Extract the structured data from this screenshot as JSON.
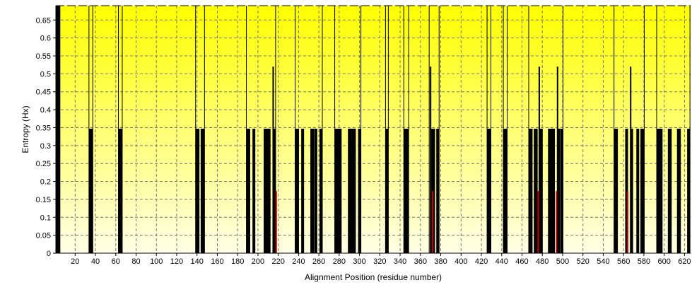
{
  "chart_data": {
    "type": "bar",
    "xlabel": "Alignment Position (residue number)",
    "ylabel": "Entropy (Hx)",
    "xlim": [
      1,
      626
    ],
    "ylim": [
      0,
      0.69
    ],
    "x_ticks": [
      20,
      40,
      60,
      80,
      100,
      120,
      140,
      160,
      180,
      200,
      220,
      240,
      260,
      280,
      300,
      320,
      340,
      360,
      380,
      400,
      420,
      440,
      460,
      480,
      500,
      520,
      540,
      560,
      580,
      600,
      620
    ],
    "y_ticks": [
      0,
      0.05,
      0.1,
      0.15,
      0.2,
      0.25,
      0.3,
      0.35,
      0.4,
      0.45,
      0.5,
      0.55,
      0.6,
      0.65
    ],
    "y_tick_labels": [
      "0",
      "0.05",
      "0.1",
      "0.15",
      "0.2",
      "0.25",
      "0.3",
      "0.35",
      "0.4",
      "0.45",
      "0.5",
      "0.55",
      "0.6",
      "0.65"
    ],
    "grid": true,
    "background_gradient": [
      "#ffff00",
      "#ffffe6"
    ],
    "bar_color": "#000000",
    "highlight_color": "#cc0000",
    "block_start": [
      1,
      4
    ],
    "series": [
      {
        "values": [
          [
            35,
            0.347
          ],
          [
            36,
            0.347
          ],
          [
            64,
            0.347
          ],
          [
            65,
            0.347
          ],
          [
            140,
            0.347
          ],
          [
            141,
            0.347
          ],
          [
            145,
            0.347
          ],
          [
            146,
            0.347
          ],
          [
            190,
            0.347
          ],
          [
            191,
            0.347
          ],
          [
            196,
            0.347
          ],
          [
            207,
            0.347
          ],
          [
            208,
            0.347
          ],
          [
            209,
            0.347
          ],
          [
            210,
            0.347
          ],
          [
            211,
            0.347
          ],
          [
            215,
            0.52
          ],
          [
            216,
            0.347
          ],
          [
            238,
            0.347
          ],
          [
            239,
            0.347
          ],
          [
            244,
            0.347
          ],
          [
            253,
            0.347
          ],
          [
            254,
            0.347
          ],
          [
            257,
            0.347
          ],
          [
            262,
            0.347
          ],
          [
            277,
            0.347
          ],
          [
            278,
            0.347
          ],
          [
            280,
            0.347
          ],
          [
            281,
            0.347
          ],
          [
            290,
            0.347
          ],
          [
            291,
            0.347
          ],
          [
            292,
            0.347
          ],
          [
            293,
            0.347
          ],
          [
            294,
            0.347
          ],
          [
            295,
            0.347
          ],
          [
            300,
            0.347
          ],
          [
            327,
            0.347
          ],
          [
            345,
            0.347
          ],
          [
            346,
            0.347
          ],
          [
            347,
            0.347
          ],
          [
            370,
            0.52
          ],
          [
            372,
            0.347
          ],
          [
            373,
            0.347
          ],
          [
            377,
            0.347
          ],
          [
            427,
            0.347
          ],
          [
            428,
            0.347
          ],
          [
            443,
            0.347
          ],
          [
            444,
            0.347
          ],
          [
            468,
            0.347
          ],
          [
            469,
            0.347
          ],
          [
            473,
            0.347
          ],
          [
            474,
            0.347
          ],
          [
            477,
            0.52
          ],
          [
            478,
            0.347
          ],
          [
            479,
            0.347
          ],
          [
            487,
            0.347
          ],
          [
            488,
            0.347
          ],
          [
            489,
            0.347
          ],
          [
            490,
            0.347
          ],
          [
            491,
            0.347
          ],
          [
            495,
            0.52
          ],
          [
            496,
            0.347
          ],
          [
            499,
            0.347
          ],
          [
            552,
            0.347
          ],
          [
            553,
            0.347
          ],
          [
            563,
            0.347
          ],
          [
            567,
            0.52
          ],
          [
            568,
            0.347
          ],
          [
            574,
            0.347
          ],
          [
            578,
            0.347
          ],
          [
            579,
            0.347
          ],
          [
            594,
            0.347
          ],
          [
            595,
            0.347
          ],
          [
            596,
            0.347
          ],
          [
            597,
            0.347
          ],
          [
            605,
            0.347
          ],
          [
            606,
            0.347
          ],
          [
            614,
            0.347
          ],
          [
            615,
            0.347
          ],
          [
            624,
            0.347
          ]
        ]
      },
      {
        "values": [
          [
            218,
            0.173
          ],
          [
            372,
            0.173
          ],
          [
            476,
            0.173
          ],
          [
            494,
            0.173
          ],
          [
            564,
            0.173
          ]
        ]
      }
    ]
  }
}
